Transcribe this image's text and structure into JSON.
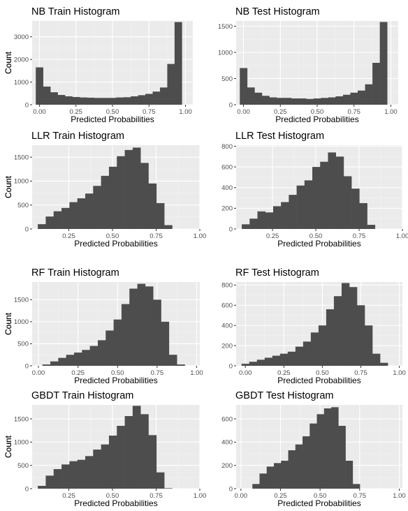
{
  "chart_data": [
    {
      "type": "bar",
      "title": "NB Train Histogram",
      "xlabel": "Predicted Probabilities",
      "ylabel": "Count",
      "xlim": [
        -0.05,
        1.05
      ],
      "ylim": [
        0,
        3700
      ],
      "xticks": [
        0,
        0.25,
        0.5,
        0.75,
        1
      ],
      "xtick_labels": [
        "0.00",
        "0.25",
        "0.50",
        "0.75",
        "1.00"
      ],
      "yticks": [
        0,
        1000,
        2000,
        3000
      ],
      "bin_start": -0.025,
      "bin_width": 0.05,
      "values": [
        1650,
        800,
        550,
        430,
        370,
        340,
        320,
        310,
        300,
        300,
        300,
        320,
        330,
        370,
        420,
        480,
        580,
        760,
        1800,
        3650
      ],
      "fill": "#4d4d4d",
      "panel_bg": "#ebebeb"
    },
    {
      "type": "bar",
      "title": "NB Test Histogram",
      "xlabel": "Predicted Probabilities",
      "ylabel": "Count",
      "xlim": [
        -0.05,
        1.05
      ],
      "ylim": [
        0,
        1600
      ],
      "xticks": [
        0,
        0.25,
        0.5,
        0.75,
        1
      ],
      "xtick_labels": [
        "0.00",
        "0.25",
        "0.50",
        "0.75",
        "1.00"
      ],
      "yticks": [
        0,
        500,
        1000,
        1500
      ],
      "bin_start": -0.025,
      "bin_width": 0.05,
      "values": [
        700,
        330,
        230,
        170,
        140,
        130,
        130,
        120,
        120,
        110,
        120,
        130,
        140,
        160,
        190,
        230,
        270,
        390,
        800,
        1580
      ],
      "fill": "#4d4d4d",
      "panel_bg": "#ebebeb"
    },
    {
      "type": "bar",
      "title": "LLR Train Histogram",
      "xlabel": "Predicted Probabilities",
      "ylabel": "Count",
      "xlim": [
        0.04,
        1.0
      ],
      "ylim": [
        0,
        1750
      ],
      "xticks": [
        0.25,
        0.5,
        0.75,
        1
      ],
      "xtick_labels": [
        "0.25",
        "0.50",
        "0.75",
        "1.00"
      ],
      "yticks": [
        0,
        500,
        1000,
        1500
      ],
      "bin_start": 0.0725,
      "bin_width": 0.04525,
      "values": [
        100,
        260,
        370,
        440,
        560,
        640,
        740,
        900,
        1110,
        1300,
        1520,
        1650,
        1700,
        1380,
        950,
        540,
        80
      ],
      "fill": "#4d4d4d",
      "panel_bg": "#ebebeb"
    },
    {
      "type": "bar",
      "title": "LLR Test Histogram",
      "xlabel": "Predicted Probabilities",
      "ylabel": "Count",
      "xlim": [
        0.04,
        1.0
      ],
      "ylim": [
        0,
        810
      ],
      "xticks": [
        0.25,
        0.5,
        0.75,
        1
      ],
      "xtick_labels": [
        "0.25",
        "0.50",
        "0.75",
        "1.00"
      ],
      "yticks": [
        0,
        200,
        400,
        600,
        800
      ],
      "bin_start": 0.0725,
      "bin_width": 0.04525,
      "values": [
        45,
        100,
        170,
        160,
        220,
        260,
        330,
        420,
        470,
        600,
        650,
        740,
        700,
        510,
        390,
        250,
        40
      ],
      "fill": "#4d4d4d",
      "panel_bg": "#ebebeb"
    },
    {
      "type": "bar",
      "title": "RF Train Histogram",
      "xlabel": "Predicted Probabilities",
      "ylabel": "Count",
      "xlim": [
        -0.04,
        1.02
      ],
      "ylim": [
        0,
        1900
      ],
      "xticks": [
        0,
        0.25,
        0.5,
        0.75,
        1
      ],
      "xtick_labels": [
        "0.00",
        "0.25",
        "0.50",
        "0.75",
        "1.00"
      ],
      "yticks": [
        0,
        500,
        1000,
        1500
      ],
      "bin_start": 0.025,
      "bin_width": 0.05,
      "values": [
        30,
        100,
        180,
        250,
        300,
        360,
        450,
        580,
        800,
        1050,
        1400,
        1750,
        1860,
        1800,
        1500,
        1000,
        250,
        30
      ],
      "fill": "#4d4d4d",
      "panel_bg": "#ebebeb"
    },
    {
      "type": "bar",
      "title": "RF Test Histogram",
      "xlabel": "Predicted Probabilities",
      "ylabel": "Count",
      "xlim": [
        -0.06,
        1.02
      ],
      "ylim": [
        0,
        830
      ],
      "xticks": [
        0,
        0.25,
        0.5,
        0.75,
        1
      ],
      "xtick_labels": [
        "0.00",
        "0.25",
        "0.50",
        "0.75",
        "1.00"
      ],
      "yticks": [
        0,
        200,
        400,
        600,
        800
      ],
      "bin_start": -0.025,
      "bin_width": 0.05,
      "values": [
        20,
        40,
        60,
        80,
        100,
        120,
        140,
        190,
        240,
        330,
        400,
        560,
        690,
        820,
        780,
        600,
        400,
        120,
        30
      ],
      "fill": "#4d4d4d",
      "panel_bg": "#ebebeb"
    },
    {
      "type": "bar",
      "title": "GBDT Train Histogram",
      "xlabel": "Predicted Probabilities",
      "ylabel": "Count",
      "xlim": [
        0.04,
        1.0
      ],
      "ylim": [
        0,
        1800
      ],
      "xticks": [
        0.25,
        0.5,
        0.75,
        1
      ],
      "xtick_labels": [
        "0.25",
        "0.50",
        "0.75",
        "1.00"
      ],
      "yticks": [
        0,
        500,
        1000,
        1500
      ],
      "bin_start": 0.0725,
      "bin_width": 0.04525,
      "values": [
        60,
        280,
        420,
        520,
        590,
        620,
        700,
        840,
        950,
        1140,
        1350,
        1560,
        1780,
        1600,
        1150,
        350,
        10
      ],
      "fill": "#4d4d4d",
      "panel_bg": "#ebebeb"
    },
    {
      "type": "bar",
      "title": "GBDT Test Histogram",
      "xlabel": "Predicted Probabilities",
      "ylabel": "Count",
      "xlim": [
        -0.03,
        1.02
      ],
      "ylim": [
        0,
        720
      ],
      "xticks": [
        0,
        0.25,
        0.5,
        0.75,
        1
      ],
      "xtick_labels": [
        "0.00",
        "0.25",
        "0.50",
        "0.75",
        "1.00"
      ],
      "yticks": [
        0,
        200,
        400,
        600
      ],
      "bin_start": 0.0725,
      "bin_width": 0.04525,
      "values": [
        40,
        130,
        190,
        220,
        240,
        330,
        380,
        450,
        560,
        640,
        690,
        700,
        540,
        240,
        40
      ],
      "fill": "#4d4d4d",
      "panel_bg": "#ebebeb"
    }
  ]
}
